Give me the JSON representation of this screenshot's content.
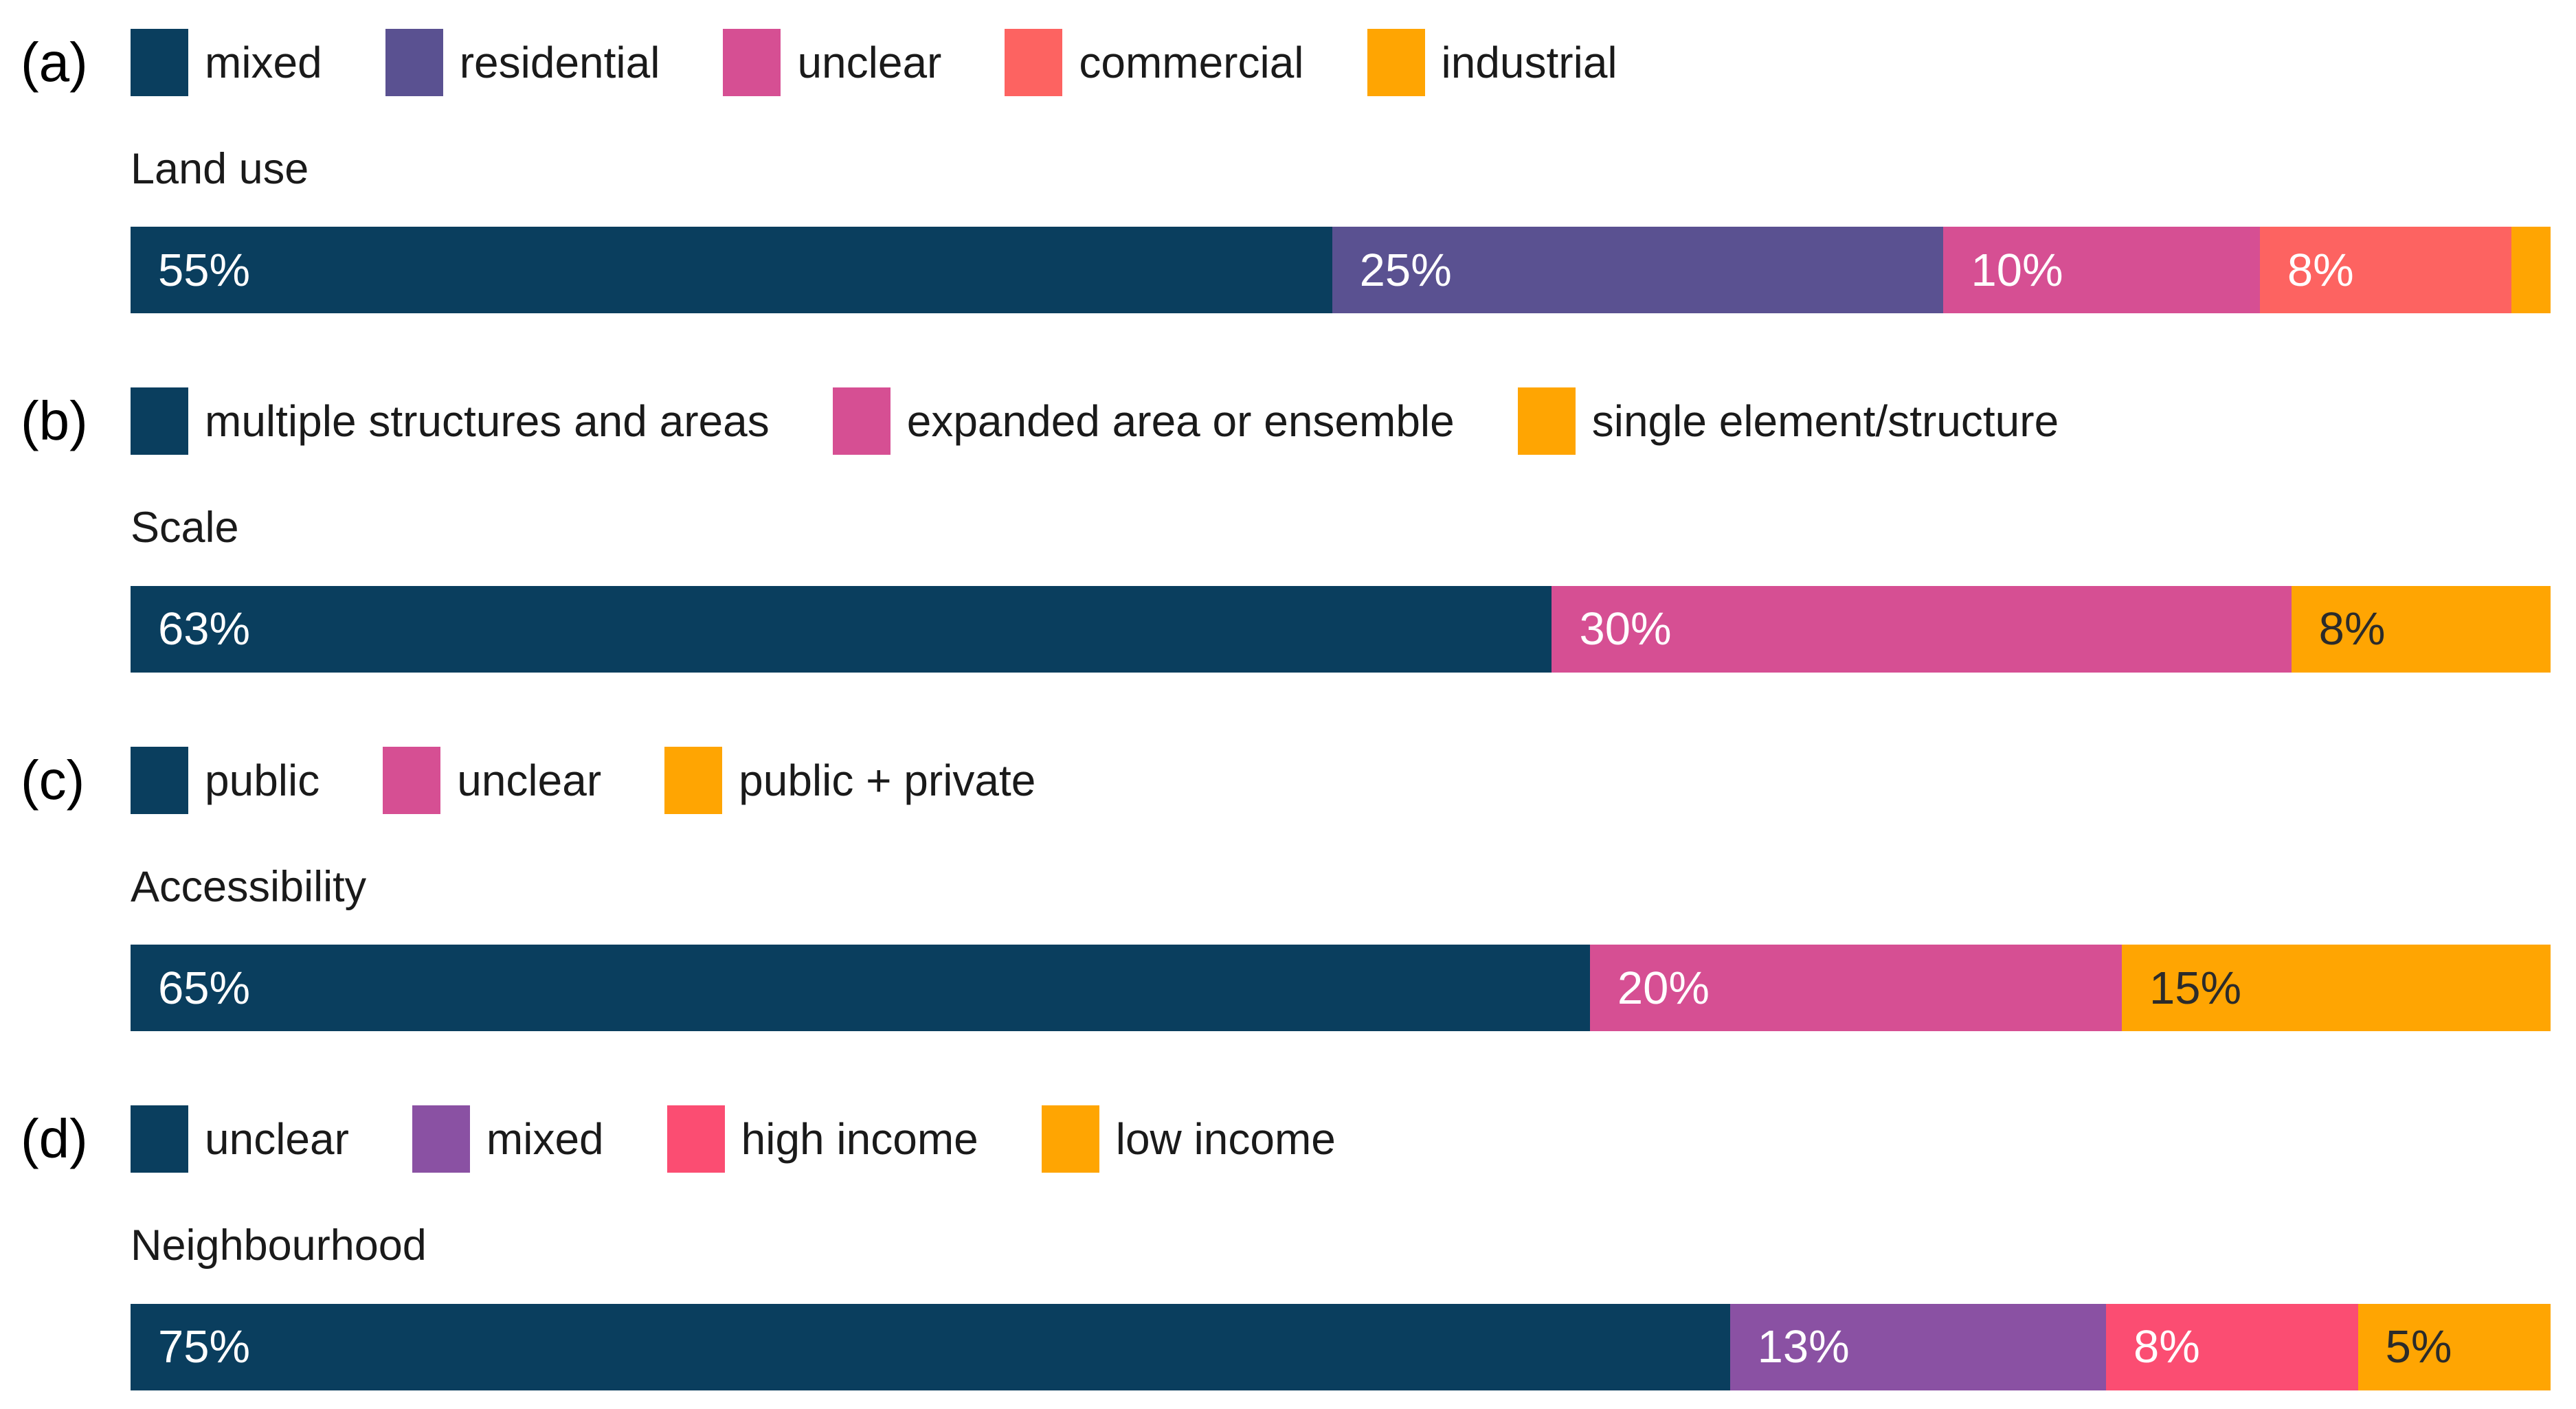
{
  "figure": {
    "background": "#ffffff",
    "text_color": "#1a1a1a",
    "value_text_light": "#ffffff",
    "value_text_dark": "#2b2b2b"
  },
  "chart_data": [
    {
      "type": "bar",
      "subtype": "stacked-horizontal",
      "tag": "(a)",
      "title": "Land use",
      "unit": "%",
      "xlim": [
        0,
        100
      ],
      "legend_position": "top",
      "segments": [
        {
          "name": "mixed",
          "value": 55,
          "label": "55%",
          "color": "#0a3e5e",
          "label_color": "light"
        },
        {
          "name": "residential",
          "value": 25,
          "label": "25%",
          "color": "#5a5191",
          "label_color": "light"
        },
        {
          "name": "unclear",
          "value": 10,
          "label": "10%",
          "color": "#d64f93",
          "label_color": "light"
        },
        {
          "name": "commercial",
          "value": 8,
          "label": "8%",
          "color": "#fd6361",
          "label_color": "light"
        },
        {
          "name": "industrial",
          "value": 2,
          "label": "",
          "color": "#ffa502",
          "label_color": "dark"
        }
      ]
    },
    {
      "type": "bar",
      "subtype": "stacked-horizontal",
      "tag": "(b)",
      "title": "Scale",
      "unit": "%",
      "xlim": [
        0,
        100
      ],
      "legend_position": "top",
      "segments": [
        {
          "name": "multiple structures and areas",
          "value": 63,
          "label": "63%",
          "color": "#0a3e5e",
          "label_color": "light"
        },
        {
          "name": "expanded area or ensemble",
          "value": 30,
          "label": "30%",
          "color": "#d64f93",
          "label_color": "light"
        },
        {
          "name": "single element/structure",
          "value": 8,
          "label": "8%",
          "color": "#ffa502",
          "label_color": "dark"
        }
      ]
    },
    {
      "type": "bar",
      "subtype": "stacked-horizontal",
      "tag": "(c)",
      "title": "Accessibility",
      "unit": "%",
      "xlim": [
        0,
        100
      ],
      "legend_position": "top",
      "segments": [
        {
          "name": "public",
          "value": 65,
          "label": "65%",
          "color": "#0a3e5e",
          "label_color": "light"
        },
        {
          "name": "unclear",
          "value": 20,
          "label": "20%",
          "color": "#d64f93",
          "label_color": "light"
        },
        {
          "name": "public + private",
          "value": 15,
          "label": "15%",
          "color": "#ffa502",
          "label_color": "dark"
        }
      ]
    },
    {
      "type": "bar",
      "subtype": "stacked-horizontal",
      "tag": "(d)",
      "title": "Neighbourhood",
      "unit": "%",
      "xlim": [
        0,
        100
      ],
      "legend_position": "top",
      "segments": [
        {
          "name": "unclear",
          "value": 75,
          "label": "75%",
          "color": "#0a3e5e",
          "label_color": "light"
        },
        {
          "name": "mixed",
          "value": 13,
          "label": "13%",
          "color": "#8a51a3",
          "label_color": "light"
        },
        {
          "name": "high income",
          "value": 8,
          "label": "8%",
          "color": "#fb4d72",
          "label_color": "light"
        },
        {
          "name": "low income",
          "value": 5,
          "label": "5%",
          "color": "#ffa502",
          "label_color": "dark"
        }
      ]
    }
  ]
}
